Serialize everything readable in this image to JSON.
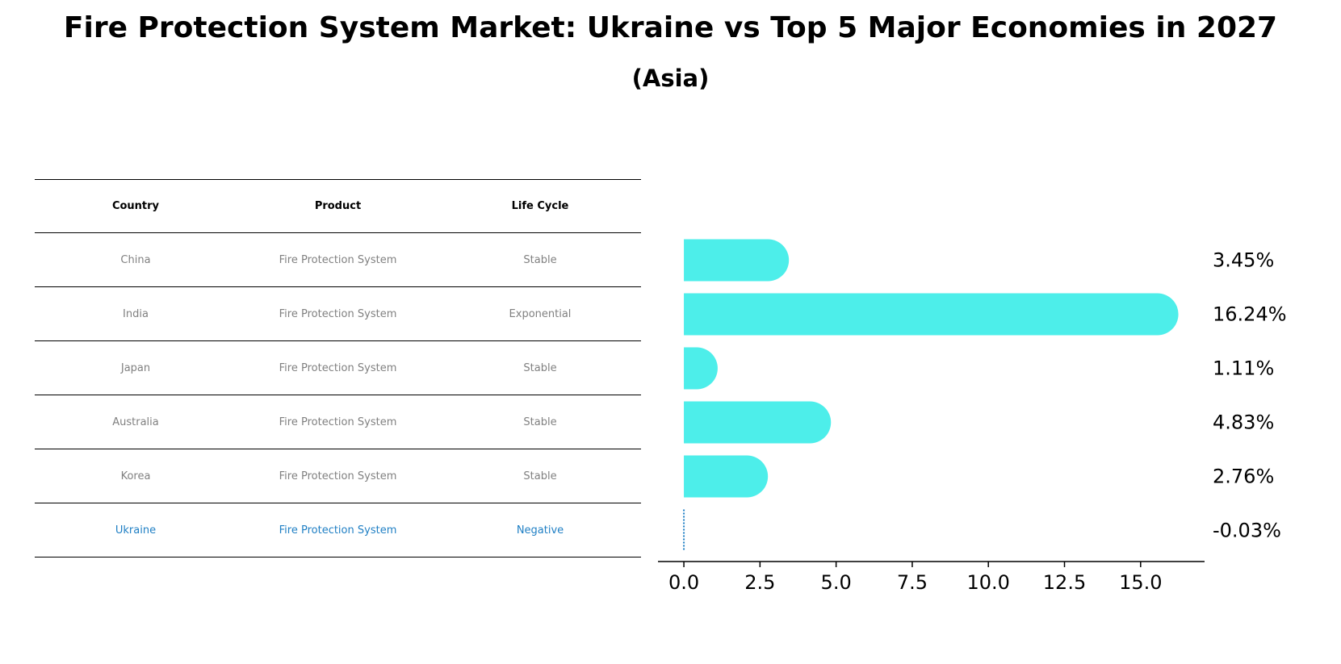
{
  "title": "Fire Protection System Market: Ukraine vs Top 5 Major Economies in 2027",
  "subtitle": "(Asia)",
  "table": {
    "headers": [
      "Country",
      "Product",
      "Life Cycle"
    ],
    "rows": [
      [
        "China",
        "Fire Protection System",
        "Stable"
      ],
      [
        "India",
        "Fire Protection System",
        "Exponential"
      ],
      [
        "Japan",
        "Fire Protection System",
        "Stable"
      ],
      [
        "Australia",
        "Fire Protection System",
        "Stable"
      ],
      [
        "Korea",
        "Fire Protection System",
        "Stable"
      ],
      [
        "Ukraine",
        "Fire Protection System",
        "Negative"
      ]
    ]
  },
  "chart_data": {
    "type": "bar",
    "orientation": "horizontal",
    "categories": [
      "China",
      "India",
      "Japan",
      "Australia",
      "Korea",
      "Ukraine"
    ],
    "values": [
      3.45,
      16.24,
      1.11,
      4.83,
      2.76,
      -0.03
    ],
    "value_labels": [
      "3.45%",
      "16.24%",
      "1.11%",
      "4.83%",
      "2.76%",
      "-0.03%"
    ],
    "xlim": [
      -0.85,
      17.1
    ],
    "xticks": [
      0.0,
      2.5,
      5.0,
      7.5,
      10.0,
      12.5,
      15.0
    ],
    "xtick_labels": [
      "0.0",
      "2.5",
      "5.0",
      "7.5",
      "10.0",
      "12.5",
      "15.0"
    ],
    "bar_color": "#4deeea",
    "negative_color": "#1f7fc4",
    "grid": false
  }
}
